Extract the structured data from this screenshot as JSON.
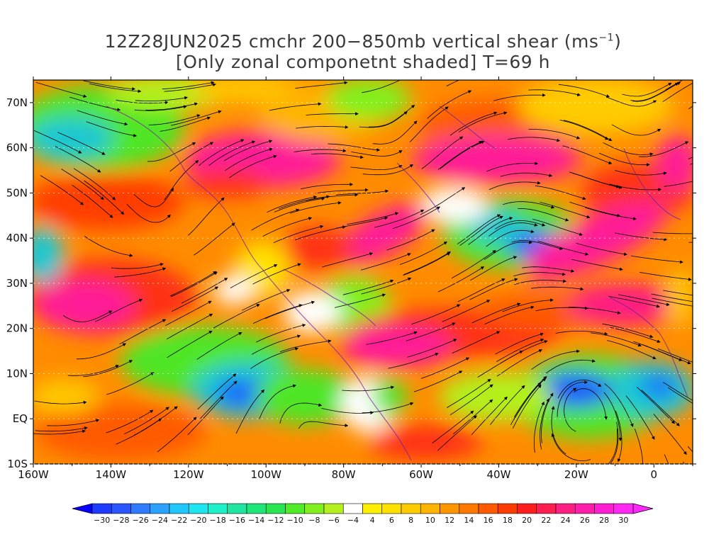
{
  "title": {
    "line1_main": "12Z28JUN2025 cmchr 200−850mb vertical shear (ms",
    "line1_sup": "−1",
    "line1_end": ")",
    "line2": "[Only zonal componetnt shaded] T=69 h"
  },
  "axes": {
    "lat_labels": [
      "70N",
      "60N",
      "50N",
      "40N",
      "30N",
      "20N",
      "10N",
      "EQ",
      "10S"
    ],
    "lat_values": [
      70,
      60,
      50,
      40,
      30,
      20,
      10,
      0,
      -10
    ],
    "lon_labels": [
      "160W",
      "140W",
      "120W",
      "100W",
      "80W",
      "60W",
      "40W",
      "20W",
      "0"
    ],
    "lon_values": [
      -160,
      -140,
      -120,
      -100,
      -80,
      -60,
      -40,
      -20,
      0
    ],
    "lon_range": [
      -160,
      10
    ],
    "lat_range": [
      -10,
      75
    ]
  },
  "colorbar": {
    "labels": [
      "−30",
      "−28",
      "−26",
      "−24",
      "−22",
      "−20",
      "−18",
      "−16",
      "−14",
      "−12",
      "−10",
      "−8",
      "−6",
      "−4",
      "4",
      "6",
      "8",
      "10",
      "12",
      "14",
      "16",
      "18",
      "20",
      "22",
      "24",
      "26",
      "28",
      "30"
    ],
    "colors": [
      "#1e3cff",
      "#2a55ff",
      "#2e7bff",
      "#2aa2ff",
      "#1ec8ff",
      "#1ee6f0",
      "#1ef0c8",
      "#1ee6a0",
      "#1ee678",
      "#28e650",
      "#50ec28",
      "#82f01e",
      "#b4f01e",
      "#ffffff",
      "#fff000",
      "#ffe100",
      "#ffcc00",
      "#ffb400",
      "#ff9600",
      "#ff7800",
      "#ff5a00",
      "#ff3c00",
      "#ff1e1e",
      "#ff1e50",
      "#ff1e82",
      "#ff1eaa",
      "#ff1ed2",
      "#ff28f0"
    ],
    "under_color": "#0a00ff",
    "over_color": "#ff28ff"
  },
  "field_colors": {
    "orange": "#ff8c00",
    "red": "#ff3214",
    "magenta": "#ff1e96",
    "yellow": "#ffc800",
    "green": "#5ae628",
    "cyan": "#1ec8d2",
    "blue": "#1e5aff",
    "streamline": "#000000",
    "coastline": "#7a1e9a"
  }
}
